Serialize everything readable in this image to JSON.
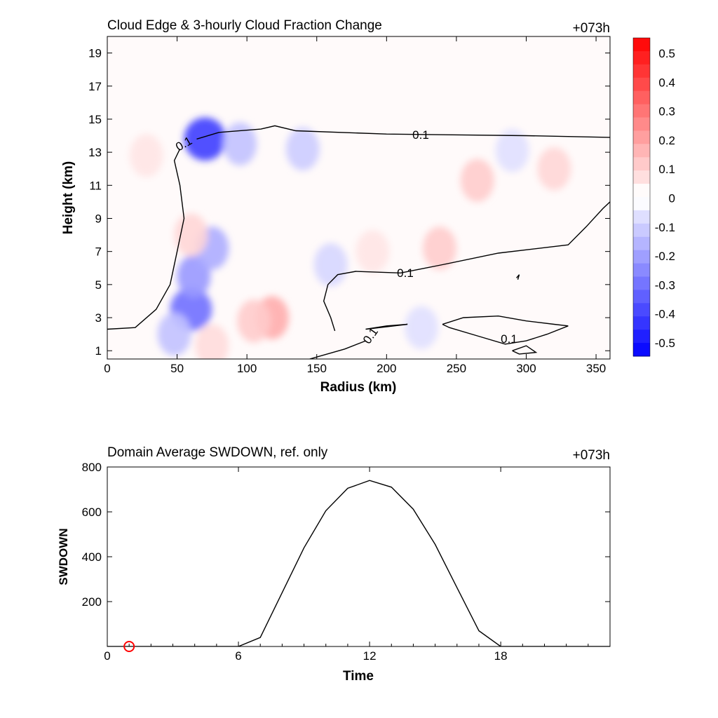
{
  "chart_data": [
    {
      "type": "heatmap",
      "title": "Cloud Edge & 3-hourly Cloud Fraction Change",
      "time_label": "+073h",
      "xlabel": "Radius (km)",
      "ylabel": "Height (km)",
      "xlim": [
        0,
        360
      ],
      "ylim": [
        0.5,
        20
      ],
      "xticks": [
        "0",
        "50",
        "100",
        "150",
        "200",
        "250",
        "300",
        "350"
      ],
      "yticks": [
        "1",
        "3",
        "5",
        "7",
        "9",
        "11",
        "13",
        "15",
        "17",
        "19"
      ],
      "colorbar": {
        "range": [
          -0.5,
          0.5
        ],
        "labels": [
          "0.5",
          "0.4",
          "0.3",
          "0.2",
          "0.1",
          "0",
          "-0.1",
          "-0.2",
          "-0.3",
          "-0.4",
          "-0.5"
        ],
        "positive_color": "#ff0000",
        "negative_color": "#0000ff"
      },
      "contour_label": "0.1",
      "anomalies": [
        {
          "r": 70,
          "z": 13.8,
          "value": -0.38
        },
        {
          "r": 95,
          "z": 13.5,
          "value": -0.12
        },
        {
          "r": 140,
          "z": 13.2,
          "value": -0.1
        },
        {
          "r": 60,
          "z": 3.5,
          "value": -0.28
        },
        {
          "r": 62,
          "z": 5.5,
          "value": -0.2
        },
        {
          "r": 75,
          "z": 7.2,
          "value": -0.16
        },
        {
          "r": 48,
          "z": 2.0,
          "value": -0.12
        },
        {
          "r": 160,
          "z": 6.2,
          "value": -0.08
        },
        {
          "r": 225,
          "z": 2.4,
          "value": -0.06
        },
        {
          "r": 290,
          "z": 13.1,
          "value": -0.06
        },
        {
          "r": 118,
          "z": 3.0,
          "value": 0.16
        },
        {
          "r": 105,
          "z": 2.8,
          "value": 0.1
        },
        {
          "r": 190,
          "z": 7.0,
          "value": 0.05
        },
        {
          "r": 238,
          "z": 7.2,
          "value": 0.1
        },
        {
          "r": 265,
          "z": 11.3,
          "value": 0.1
        },
        {
          "r": 320,
          "z": 12.0,
          "value": 0.08
        },
        {
          "r": 60,
          "z": 8.0,
          "value": 0.08
        },
        {
          "r": 28,
          "z": 12.8,
          "value": 0.05
        },
        {
          "r": 75,
          "z": 1.3,
          "value": 0.07
        }
      ],
      "contours": [
        [
          [
            0,
            2.3
          ],
          [
            20,
            2.4
          ],
          [
            35,
            3.5
          ],
          [
            45,
            5
          ],
          [
            50,
            7
          ],
          [
            55,
            9
          ],
          [
            52,
            11
          ],
          [
            48,
            12.5
          ],
          [
            52,
            13.2
          ]
        ],
        [
          [
            64,
            13.8
          ],
          [
            80,
            14.2
          ],
          [
            110,
            14.4
          ],
          [
            120,
            14.6
          ],
          [
            135,
            14.3
          ],
          [
            200,
            14.1
          ],
          [
            300,
            14.0
          ],
          [
            360,
            13.9
          ]
        ],
        [
          [
            163,
            2.2
          ],
          [
            160,
            3
          ],
          [
            155,
            4
          ],
          [
            158,
            5
          ],
          [
            165,
            5.6
          ],
          [
            178,
            5.8
          ],
          [
            210,
            5.7
          ],
          [
            240,
            6.2
          ],
          [
            280,
            6.9
          ],
          [
            330,
            7.4
          ],
          [
            343,
            8.5
          ],
          [
            355,
            9.6
          ],
          [
            360,
            10
          ]
        ],
        [
          [
            185,
            2.3
          ],
          [
            200,
            2.5
          ],
          [
            215,
            2.6
          ],
          [
            185,
            2.3
          ]
        ],
        [
          [
            240,
            2.6
          ],
          [
            255,
            3.0
          ],
          [
            280,
            3.1
          ],
          [
            300,
            2.8
          ],
          [
            320,
            2.6
          ],
          [
            330,
            2.5
          ],
          [
            315,
            2.0
          ],
          [
            300,
            1.6
          ],
          [
            285,
            1.4
          ],
          [
            265,
            1.9
          ],
          [
            245,
            2.4
          ],
          [
            240,
            2.6
          ]
        ],
        [
          [
            290,
            1.0
          ],
          [
            300,
            1.3
          ],
          [
            307,
            0.9
          ],
          [
            295,
            0.8
          ],
          [
            290,
            1.0
          ]
        ],
        [
          [
            145,
            0.5
          ],
          [
            170,
            1.1
          ],
          [
            185,
            1.6
          ]
        ],
        [
          [
            293,
            5.4
          ],
          [
            295,
            5.6
          ],
          [
            294,
            5.3
          ]
        ]
      ]
    },
    {
      "type": "line",
      "title": "Domain Average SWDOWN, ref. only",
      "time_label": "+073h",
      "xlabel": "Time",
      "ylabel": "SWDOWN",
      "xlim": [
        0,
        23
      ],
      "ylim": [
        0,
        800
      ],
      "xticks": [
        "0",
        "6",
        "12",
        "18"
      ],
      "yticks": [
        "200",
        "400",
        "600",
        "800"
      ],
      "x": [
        0,
        1,
        2,
        3,
        4,
        5,
        6,
        7,
        8,
        9,
        10,
        11,
        12,
        13,
        14,
        15,
        16,
        17,
        18,
        19,
        20,
        21,
        22,
        23
      ],
      "values": [
        0,
        0,
        0,
        0,
        0,
        0,
        0,
        40,
        240,
        440,
        605,
        705,
        740,
        710,
        612,
        455,
        262,
        70,
        0,
        0,
        0,
        0,
        0,
        0
      ],
      "marker": {
        "x": 1,
        "y": 0,
        "color": "#ff0000"
      }
    }
  ]
}
